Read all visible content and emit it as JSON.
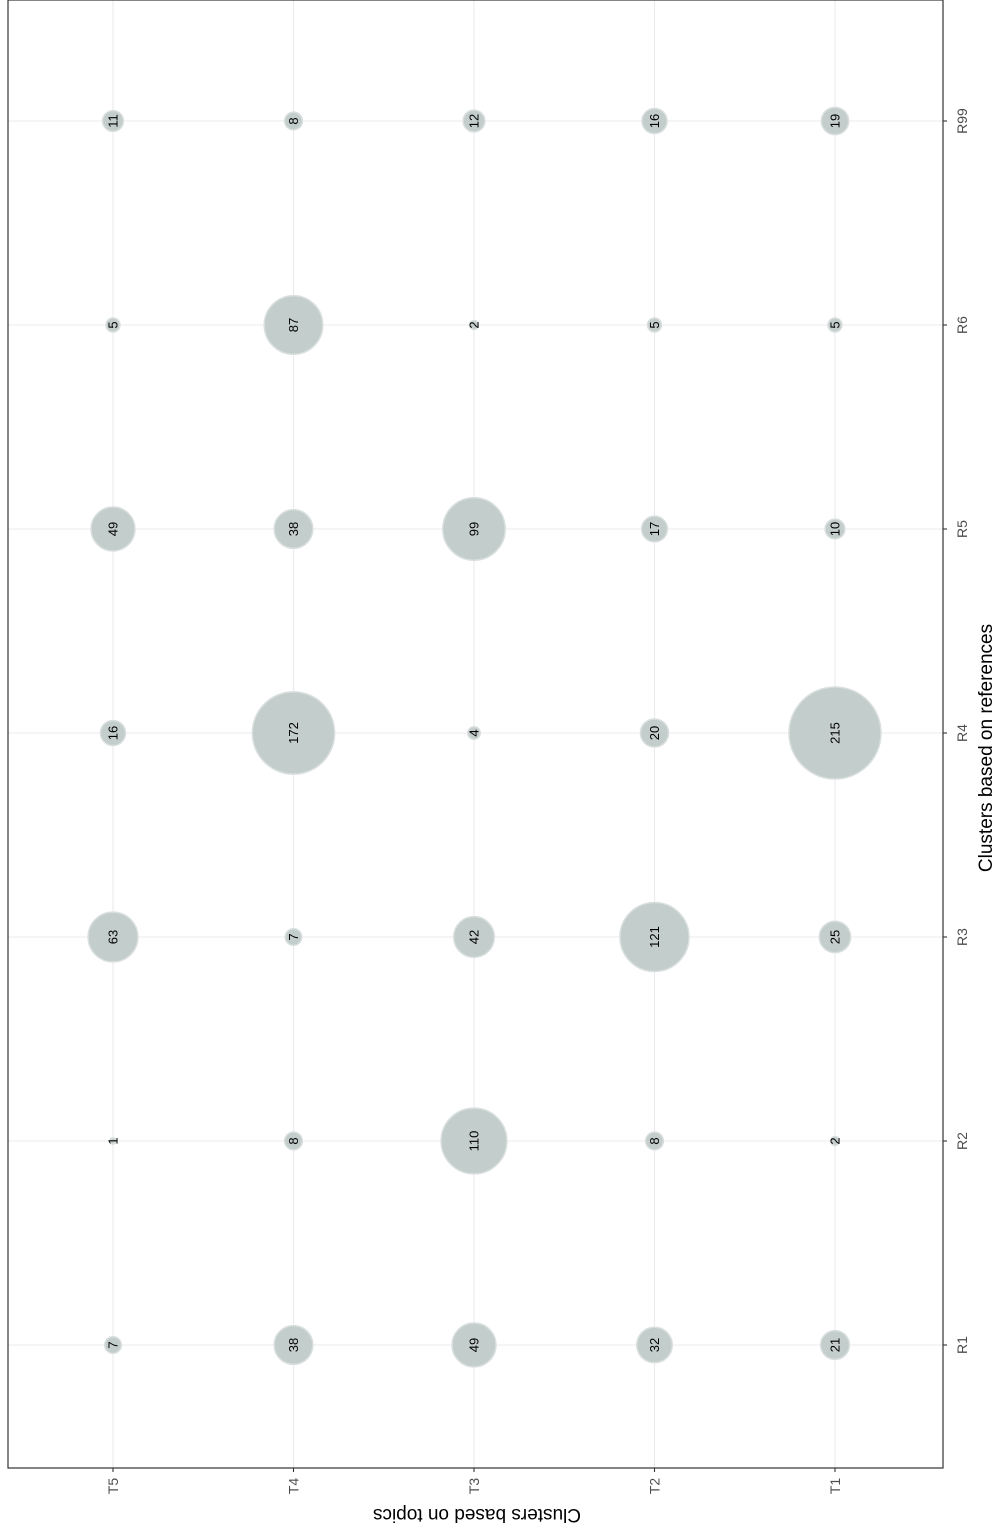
{
  "chart_data": {
    "type": "bubble",
    "orientation": "rotated-90",
    "xlabel": "Clusters based on references",
    "ylabel": "Clusters based on topics",
    "x_categories": [
      "R1",
      "R2",
      "R3",
      "R4",
      "R5",
      "R6",
      "R99"
    ],
    "y_categories": [
      "T1",
      "T2",
      "T3",
      "T4",
      "T5"
    ],
    "grid": true,
    "legend": "none",
    "bubble_color": "#c3cdcc",
    "bubble_outline": "#d9dfde",
    "counts": [
      {
        "topic": "T1",
        "values": [
          21,
          2,
          25,
          215,
          10,
          5,
          19
        ]
      },
      {
        "topic": "T2",
        "values": [
          32,
          8,
          121,
          20,
          17,
          5,
          16
        ]
      },
      {
        "topic": "T3",
        "values": [
          49,
          110,
          42,
          4,
          99,
          2,
          12
        ]
      },
      {
        "topic": "T4",
        "values": [
          38,
          8,
          7,
          172,
          38,
          87,
          8
        ]
      },
      {
        "topic": "T5",
        "values": [
          7,
          1,
          63,
          16,
          49,
          5,
          11
        ]
      }
    ]
  }
}
